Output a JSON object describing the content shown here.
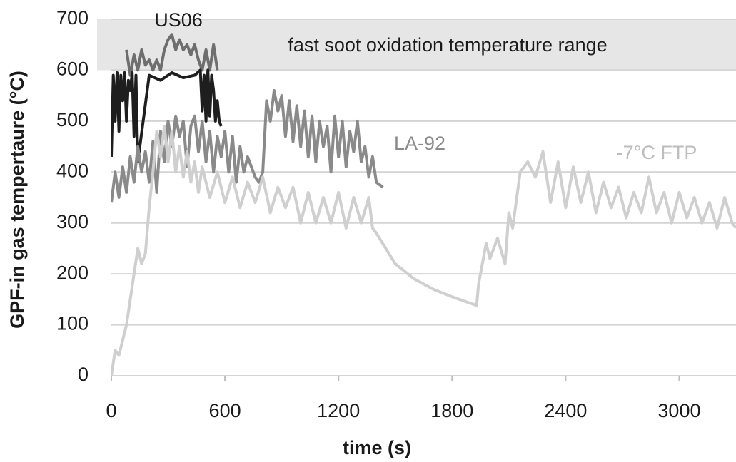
{
  "chart_data": {
    "type": "line",
    "xlabel": "time (s)",
    "ylabel": "GPF-in gas tempertaure (°C)",
    "xlim": [
      0,
      3300
    ],
    "ylim": [
      0,
      700
    ],
    "xticks": [
      0,
      600,
      1200,
      1800,
      2400,
      3000
    ],
    "yticks": [
      0,
      100,
      200,
      300,
      400,
      500,
      600,
      700
    ],
    "grid": true,
    "band": {
      "from": 600,
      "to": 700,
      "label": "fast soot oxidation temperature range",
      "color": "#e6e6e6"
    },
    "series": [
      {
        "color": "#6e6e6e",
        "x": [
          80,
          100,
          120,
          140,
          160,
          180,
          200,
          220,
          240,
          260,
          280,
          300,
          320,
          340,
          360,
          380,
          400,
          420,
          440,
          460,
          480,
          500,
          520,
          540,
          560
        ],
        "values": [
          640,
          590,
          630,
          600,
          640,
          610,
          620,
          600,
          620,
          600,
          640,
          660,
          670,
          640,
          660,
          640,
          650,
          630,
          650,
          620,
          600,
          640,
          600,
          650,
          600
        ]
      },
      {
        "name": "US06",
        "color": "#1e1e1e",
        "x": [
          0,
          10,
          20,
          30,
          40,
          50,
          60,
          70,
          80,
          90,
          100,
          110,
          120,
          130,
          140,
          200,
          260,
          320,
          380,
          440,
          470,
          480,
          490,
          500,
          510,
          520,
          530,
          540,
          550,
          560,
          570,
          580
        ],
        "values": [
          430,
          590,
          500,
          595,
          480,
          590,
          540,
          595,
          500,
          580,
          560,
          595,
          470,
          590,
          420,
          590,
          580,
          595,
          585,
          590,
          600,
          520,
          590,
          500,
          600,
          510,
          590,
          560,
          500,
          540,
          500,
          490
        ]
      },
      {
        "name": "LA-92",
        "color": "#8a8a8a",
        "x": [
          0,
          20,
          40,
          60,
          80,
          100,
          120,
          140,
          160,
          180,
          200,
          220,
          240,
          260,
          280,
          300,
          320,
          340,
          360,
          380,
          400,
          420,
          440,
          460,
          480,
          500,
          520,
          540,
          560,
          580,
          600,
          620,
          640,
          660,
          680,
          700,
          720,
          760,
          780,
          800,
          820,
          840,
          860,
          880,
          900,
          920,
          940,
          960,
          980,
          1000,
          1020,
          1040,
          1060,
          1080,
          1100,
          1120,
          1140,
          1160,
          1180,
          1200,
          1220,
          1240,
          1260,
          1280,
          1300,
          1320,
          1340,
          1360,
          1380,
          1400,
          1435
        ],
        "values": [
          340,
          400,
          350,
          410,
          360,
          430,
          380,
          450,
          400,
          440,
          380,
          460,
          360,
          480,
          420,
          500,
          450,
          510,
          470,
          500,
          410,
          490,
          510,
          440,
          500,
          420,
          480,
          400,
          470,
          430,
          480,
          400,
          470,
          380,
          450,
          400,
          430,
          390,
          380,
          400,
          540,
          500,
          560,
          520,
          550,
          470,
          540,
          460,
          530,
          450,
          520,
          430,
          510,
          420,
          500,
          450,
          490,
          400,
          510,
          430,
          500,
          410,
          480,
          440,
          500,
          420,
          450,
          390,
          430,
          380,
          370
        ]
      },
      {
        "name": "-7°C FTP",
        "color": "#cfcfcf",
        "x": [
          0,
          20,
          40,
          60,
          80,
          100,
          120,
          140,
          160,
          180,
          200,
          220,
          240,
          260,
          280,
          300,
          320,
          340,
          360,
          380,
          400,
          420,
          440,
          460,
          480,
          520,
          560,
          600,
          640,
          680,
          720,
          760,
          800,
          840,
          880,
          920,
          960,
          1000,
          1040,
          1080,
          1120,
          1160,
          1200,
          1240,
          1280,
          1320,
          1360,
          1380,
          1400,
          1500,
          1600,
          1700,
          1800,
          1930,
          1940,
          1980,
          2000,
          2040,
          2080,
          2100,
          2120,
          2160,
          2200,
          2240,
          2280,
          2320,
          2360,
          2400,
          2440,
          2480,
          2520,
          2560,
          2600,
          2640,
          2680,
          2720,
          2760,
          2800,
          2840,
          2880,
          2920,
          2960,
          3000,
          3040,
          3080,
          3120,
          3160,
          3200,
          3240,
          3280,
          3300
        ],
        "values": [
          0,
          50,
          40,
          70,
          100,
          150,
          200,
          250,
          220,
          240,
          330,
          400,
          480,
          430,
          490,
          420,
          480,
          400,
          450,
          390,
          440,
          380,
          420,
          360,
          410,
          350,
          400,
          340,
          390,
          330,
          380,
          340,
          390,
          320,
          370,
          330,
          370,
          300,
          360,
          300,
          350,
          300,
          360,
          290,
          350,
          300,
          350,
          290,
          280,
          220,
          190,
          170,
          155,
          138,
          180,
          260,
          230,
          270,
          220,
          320,
          290,
          400,
          420,
          390,
          440,
          340,
          420,
          330,
          410,
          340,
          400,
          320,
          380,
          330,
          370,
          310,
          360,
          320,
          390,
          320,
          360,
          300,
          360,
          310,
          350,
          300,
          340,
          290,
          350,
          300,
          290
        ]
      }
    ]
  }
}
